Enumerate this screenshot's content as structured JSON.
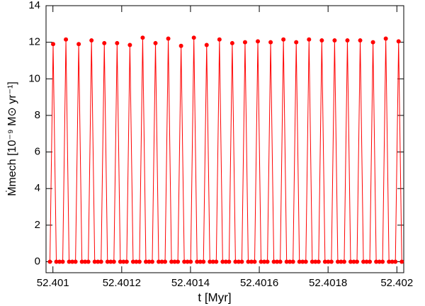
{
  "chart_data": {
    "type": "line",
    "xlabel": "t [Myr]",
    "ylabel": "Ṁmech [10⁻⁹ M⊙ yr⁻¹]",
    "xlim": [
      52.40098,
      52.40202
    ],
    "xticks": [
      52.401,
      52.4012,
      52.4014,
      52.4016,
      52.4018,
      52.402
    ],
    "ylim": [
      -0.6,
      14
    ],
    "yticks": [
      0,
      2,
      4,
      6,
      8,
      10,
      12,
      14
    ],
    "markers": true,
    "x": [
      52.4009913,
      52.4010006,
      52.4010099,
      52.4010192,
      52.4010285,
      52.4010378,
      52.4010471,
      52.4010564,
      52.4010657,
      52.401075,
      52.4010843,
      52.4010936,
      52.4011029,
      52.4011122,
      52.4011215,
      52.4011308,
      52.4011401,
      52.4011494,
      52.4011587,
      52.401168,
      52.4011773,
      52.4011866,
      52.4011959,
      52.4012052,
      52.4012145,
      52.4012238,
      52.4012331,
      52.4012424,
      52.4012517,
      52.401261,
      52.4012703,
      52.4012796,
      52.4012889,
      52.4012982,
      52.4013075,
      52.4013168,
      52.4013261,
      52.4013354,
      52.4013447,
      52.401354,
      52.4013633,
      52.4013726,
      52.4013819,
      52.4013912,
      52.4014005,
      52.4014098,
      52.4014191,
      52.4014284,
      52.4014377,
      52.401447,
      52.4014563,
      52.4014656,
      52.4014749,
      52.4014842,
      52.4014935,
      52.4015028,
      52.4015121,
      52.4015214,
      52.4015307,
      52.40154,
      52.4015493,
      52.4015586,
      52.4015679,
      52.4015772,
      52.4015865,
      52.4015958,
      52.4016051,
      52.4016144,
      52.4016237,
      52.401633,
      52.4016423,
      52.4016516,
      52.4016609,
      52.4016702,
      52.4016795,
      52.4016888,
      52.4016981,
      52.4017074,
      52.4017167,
      52.401726,
      52.4017353,
      52.4017446,
      52.4017539,
      52.4017632,
      52.4017725,
      52.4017818,
      52.4017911,
      52.4018004,
      52.4018097,
      52.401819,
      52.4018283,
      52.4018376,
      52.4018469,
      52.4018562,
      52.4018655,
      52.4018748,
      52.4018841,
      52.4018934,
      52.4019027,
      52.401912,
      52.4019213,
      52.4019306,
      52.4019399,
      52.4019492,
      52.4019585,
      52.4019678,
      52.4019771,
      52.4019864,
      52.4019957,
      52.402005,
      52.4020143
    ],
    "series": [
      {
        "color": "#ff0000",
        "values": [
          0,
          11.9,
          0,
          0,
          0,
          12.15,
          0,
          0,
          0,
          11.9,
          0,
          0,
          0,
          12.1,
          0,
          0,
          0,
          11.95,
          0,
          0,
          0,
          11.95,
          0,
          0,
          0,
          11.85,
          0,
          0,
          0,
          12.25,
          0,
          0,
          0,
          11.95,
          0,
          0,
          0,
          12.2,
          0,
          0,
          0,
          11.8,
          0,
          0,
          0,
          12.25,
          0,
          0,
          0,
          11.85,
          0,
          0,
          0,
          12.15,
          0,
          0,
          0,
          11.95,
          0,
          0,
          0,
          12.0,
          0,
          0,
          0,
          12.05,
          0,
          0,
          0,
          12.0,
          0,
          0,
          0,
          12.15,
          0,
          0,
          0,
          12.0,
          0,
          0,
          0,
          12.15,
          0,
          0,
          0,
          12.1,
          0,
          0,
          0,
          12.1,
          0,
          0,
          0,
          12.1,
          0,
          0,
          0,
          12.1,
          0,
          0,
          0,
          12.0,
          0,
          0,
          0,
          12.2,
          0,
          0,
          0,
          12.05,
          0
        ]
      }
    ]
  }
}
